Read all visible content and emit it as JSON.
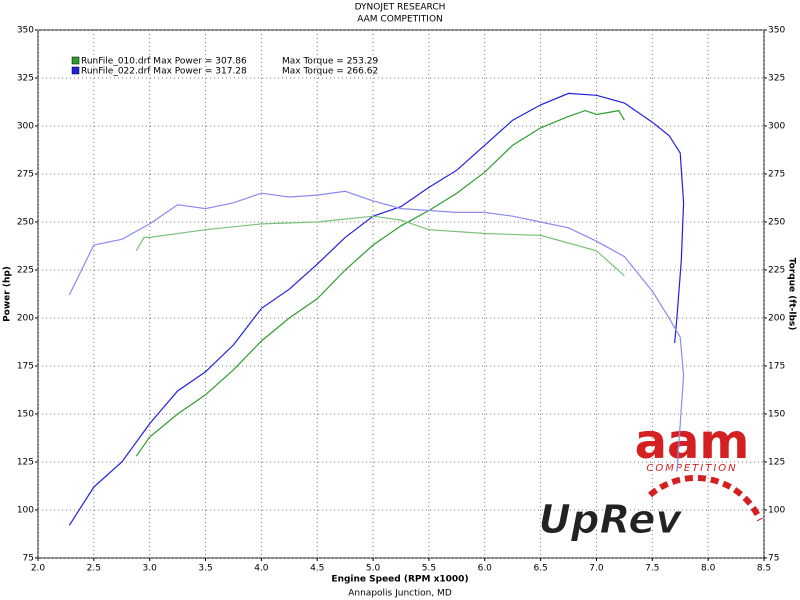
{
  "chart_data": {
    "type": "line",
    "title": "DYNOJET RESEARCH",
    "subtitle": "AAM COMPETITION",
    "x_label": "Engine Speed (RPM x1000)",
    "footer": "Annapolis Junction, MD",
    "y_label": "Power (hp)",
    "y2_label": "Torque (ft-lbs)",
    "xlim": [
      2.0,
      8.5
    ],
    "xticks": [
      {
        "value": 2.0,
        "label": "2.0"
      },
      2.5,
      {
        "value": 3.0,
        "label": "3.0"
      },
      3.5,
      {
        "value": 4.0,
        "label": "4.0"
      },
      4.5,
      {
        "value": 5.0,
        "label": "5.0"
      },
      5.5,
      {
        "value": 6.0,
        "label": "6.0"
      },
      6.5,
      {
        "value": 7.0,
        "label": "7.0"
      },
      7.5,
      {
        "value": 8.0,
        "label": "8.0"
      },
      8.5
    ],
    "ylim": [
      75,
      350
    ],
    "yticks": [
      75,
      100,
      125,
      150,
      175,
      200,
      225,
      250,
      275,
      300,
      325,
      350
    ],
    "y2lim": [
      75,
      350
    ],
    "y2ticks": [
      75,
      100,
      125,
      150,
      175,
      200,
      225,
      250,
      275,
      300,
      325,
      350
    ],
    "grid": true,
    "legend": [
      {
        "label": "RunFile_010.drf Max Power = 307.86",
        "torque_label": "Max Torque = 253.29",
        "color": "#2e9e2e"
      },
      {
        "label": "RunFile_022.drf Max Power = 317.28",
        "torque_label": "Max Torque = 266.62",
        "color": "#2020e0"
      }
    ],
    "logos": [
      "aam",
      "COMPETITION",
      "UpRev"
    ],
    "series": [
      {
        "color": "#2e9e2e",
        "x": [
          2.88,
          3.0,
          3.25,
          3.5,
          3.75,
          4.0,
          4.25,
          4.5,
          4.75,
          5.0,
          5.25,
          5.5,
          5.75,
          6.0,
          6.25,
          6.5,
          6.75,
          6.9,
          7.0,
          7.1,
          7.2,
          7.25
        ],
        "values": [
          128,
          138,
          150,
          160,
          173,
          188,
          200,
          210,
          225,
          238,
          248,
          256,
          265,
          276,
          290,
          299,
          305,
          308,
          306,
          307,
          308,
          303
        ]
      },
      {
        "color": "#2020e0",
        "x": [
          2.28,
          2.5,
          2.75,
          3.0,
          3.25,
          3.5,
          3.75,
          4.0,
          4.25,
          4.5,
          4.75,
          5.0,
          5.25,
          5.5,
          5.75,
          6.0,
          6.25,
          6.5,
          6.75,
          7.0,
          7.25,
          7.5,
          7.65,
          7.75,
          7.78,
          7.76,
          7.72,
          7.7
        ],
        "values": [
          92,
          112,
          125,
          145,
          162,
          172,
          186,
          205,
          215,
          228,
          242,
          253,
          258,
          268,
          277,
          290,
          303,
          311,
          317,
          316,
          312,
          302,
          295,
          286,
          260,
          230,
          200,
          187
        ]
      },
      {
        "color": "#7ac27a",
        "axis": "y2",
        "x": [
          2.88,
          2.95,
          3.0,
          3.5,
          4.0,
          4.5,
          5.0,
          5.25,
          5.5,
          6.0,
          6.5,
          7.0,
          7.25
        ],
        "values": [
          235,
          242,
          242,
          246,
          249,
          250,
          253,
          251,
          246,
          244,
          243,
          235,
          222
        ]
      },
      {
        "color": "#8a8af0",
        "axis": "y2",
        "x": [
          2.28,
          2.5,
          2.75,
          3.0,
          3.25,
          3.5,
          3.75,
          4.0,
          4.25,
          4.5,
          4.75,
          5.0,
          5.25,
          5.5,
          5.75,
          6.0,
          6.25,
          6.5,
          6.75,
          7.0,
          7.25,
          7.5,
          7.65,
          7.75,
          7.78,
          7.72
        ],
        "values": [
          212,
          238,
          241,
          249,
          259,
          257,
          260,
          265,
          263,
          264,
          266,
          261,
          257,
          256,
          255,
          255,
          253,
          250,
          247,
          240,
          232,
          214,
          200,
          190,
          170,
          120
        ]
      }
    ]
  }
}
